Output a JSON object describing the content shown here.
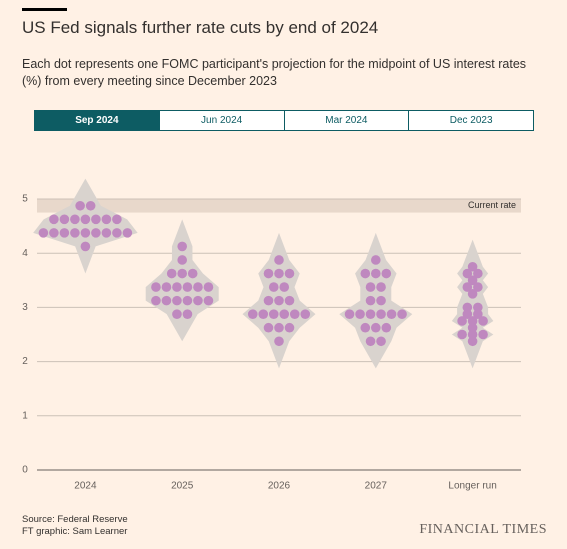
{
  "chart_data": {
    "type": "dotplot",
    "title": "US Fed signals further rate cuts by end of 2024",
    "subtitle": "Each dot represents one FOMC participant's projection for the midpoint of US interest rates (%) from every meeting since December 2023",
    "tabs": [
      "Sep 2024",
      "Jun 2024",
      "Mar 2024",
      "Dec 2023"
    ],
    "active_tab": 0,
    "categories": [
      "2024",
      "2025",
      "2026",
      "2027",
      "Longer run"
    ],
    "groups": [
      {
        "values": [
          4.875,
          4.875,
          4.625,
          4.625,
          4.625,
          4.625,
          4.625,
          4.625,
          4.625,
          4.375,
          4.375,
          4.375,
          4.375,
          4.375,
          4.375,
          4.375,
          4.375,
          4.375,
          4.125
        ]
      },
      {
        "values": [
          4.125,
          3.875,
          3.625,
          3.625,
          3.625,
          3.375,
          3.375,
          3.375,
          3.375,
          3.375,
          3.375,
          3.125,
          3.125,
          3.125,
          3.125,
          3.125,
          3.125,
          2.875,
          2.875
        ]
      },
      {
        "values": [
          3.875,
          3.625,
          3.625,
          3.625,
          3.375,
          3.375,
          3.125,
          3.125,
          3.125,
          2.875,
          2.875,
          2.875,
          2.875,
          2.875,
          2.875,
          2.625,
          2.625,
          2.625,
          2.375
        ]
      },
      {
        "values": [
          3.875,
          3.625,
          3.625,
          3.625,
          3.375,
          3.375,
          3.125,
          3.125,
          2.875,
          2.875,
          2.875,
          2.875,
          2.875,
          2.875,
          2.625,
          2.625,
          2.625,
          2.375,
          2.375
        ]
      },
      {
        "values": [
          3.75,
          3.625,
          3.625,
          3.5,
          3.375,
          3.375,
          3.25,
          3.0,
          3.0,
          2.875,
          2.875,
          2.75,
          2.75,
          2.75,
          2.625,
          2.5,
          2.5,
          2.5,
          2.375
        ]
      }
    ],
    "color": "#bf88bf",
    "current_rate": {
      "label": "Current rate",
      "range": [
        4.75,
        5
      ]
    },
    "ylim": [
      0,
      5
    ],
    "yticks": [
      0,
      1,
      2,
      3,
      4,
      5
    ],
    "grid": true
  },
  "footer": {
    "source": "Source: Federal Reserve",
    "credit": "FT graphic: Sam Learner",
    "brand": "FINANCIAL TIMES"
  }
}
